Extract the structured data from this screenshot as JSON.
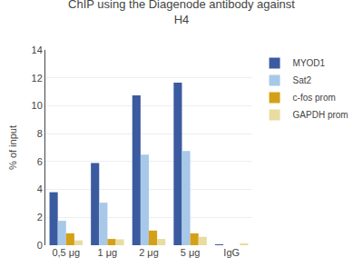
{
  "chart_data": {
    "type": "bar",
    "title": "ChIP using the Diagenode antibody against\nH4",
    "ylabel": "% of input",
    "categories": [
      "0,5 μg",
      "1 μg",
      "2 μg",
      "5 μg",
      "IgG"
    ],
    "series": [
      {
        "name": "MYOD1",
        "color": "#3A5BA0",
        "values": [
          3.8,
          5.9,
          10.75,
          11.65,
          0.06
        ]
      },
      {
        "name": "Sat2",
        "color": "#A8C8E8",
        "values": [
          1.75,
          3.05,
          6.5,
          6.75,
          0.0
        ]
      },
      {
        "name": "c-fos prom",
        "color": "#D4A017",
        "values": [
          0.85,
          0.45,
          1.05,
          0.85,
          0.0
        ]
      },
      {
        "name": "GAPDH prom",
        "color": "#E8DCA0",
        "values": [
          0.35,
          0.42,
          0.45,
          0.6,
          0.08
        ]
      }
    ],
    "ylim": [
      0,
      14
    ],
    "yticks": [
      0,
      2,
      4,
      6,
      8,
      10,
      12,
      14
    ],
    "grid": true,
    "legend": "upper right"
  }
}
